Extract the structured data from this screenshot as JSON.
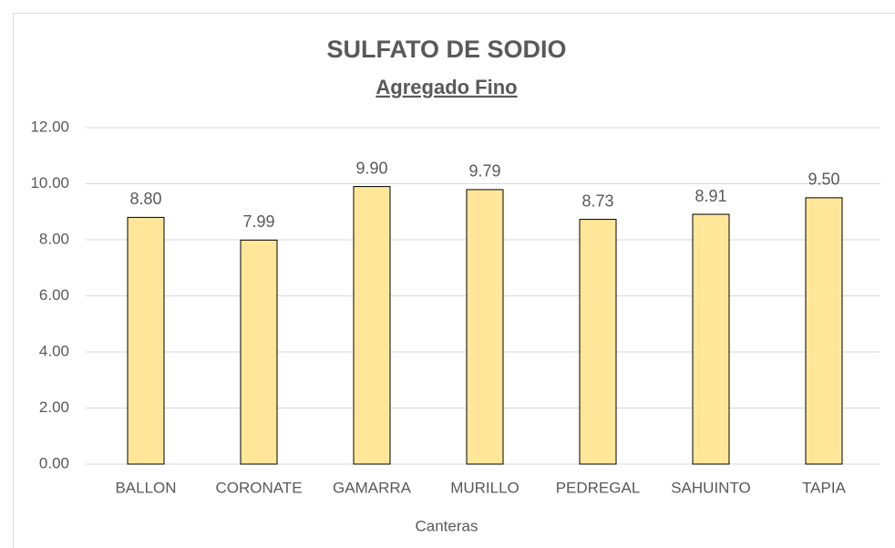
{
  "chart_data": {
    "type": "bar",
    "title": "SULFATO DE SODIO",
    "subtitle": "Agregado Fino",
    "x_label": "Canteras",
    "categories": [
      "BALLON",
      "CORONATE",
      "GAMARRA",
      "MURILLO",
      "PEDREGAL",
      "SAHUINTO",
      "TAPIA"
    ],
    "values": [
      8.8,
      7.99,
      9.9,
      9.79,
      8.73,
      8.91,
      9.5
    ],
    "value_labels": [
      "8.80",
      "7.99",
      "9.90",
      "9.79",
      "8.73",
      "8.91",
      "9.50"
    ],
    "color": "#FFE699",
    "ylim": [
      0,
      12
    ],
    "yticks": [
      {
        "value": 0,
        "label": "0.00"
      },
      {
        "value": 2,
        "label": "2.00"
      },
      {
        "value": 4,
        "label": "4.00"
      },
      {
        "value": 6,
        "label": "6.00"
      },
      {
        "value": 8,
        "label": "8.00"
      },
      {
        "value": 10,
        "label": "10.00"
      },
      {
        "value": 12,
        "label": "12.00"
      }
    ],
    "grid": true
  }
}
